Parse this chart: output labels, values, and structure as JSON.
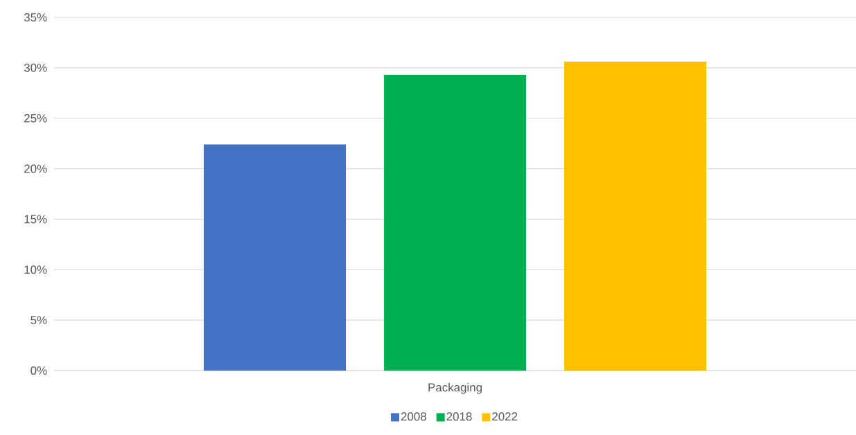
{
  "chart_data": {
    "type": "bar",
    "categories": [
      "Packaging"
    ],
    "series": [
      {
        "name": "2008",
        "color": "#4472c4",
        "values": [
          22.4
        ]
      },
      {
        "name": "2018",
        "color": "#00b050",
        "values": [
          29.3
        ]
      },
      {
        "name": "2022",
        "color": "#ffc000",
        "values": [
          30.6
        ]
      }
    ],
    "ylim": [
      0,
      35
    ],
    "yticks": [
      {
        "value": 0,
        "label": "0%"
      },
      {
        "value": 5,
        "label": "5%"
      },
      {
        "value": 10,
        "label": "10%"
      },
      {
        "value": 15,
        "label": "15%"
      },
      {
        "value": 20,
        "label": "20%"
      },
      {
        "value": 25,
        "label": "25%"
      },
      {
        "value": 30,
        "label": "30%"
      },
      {
        "value": 35,
        "label": "35%"
      }
    ],
    "grid": "y",
    "legend": "bottom"
  }
}
